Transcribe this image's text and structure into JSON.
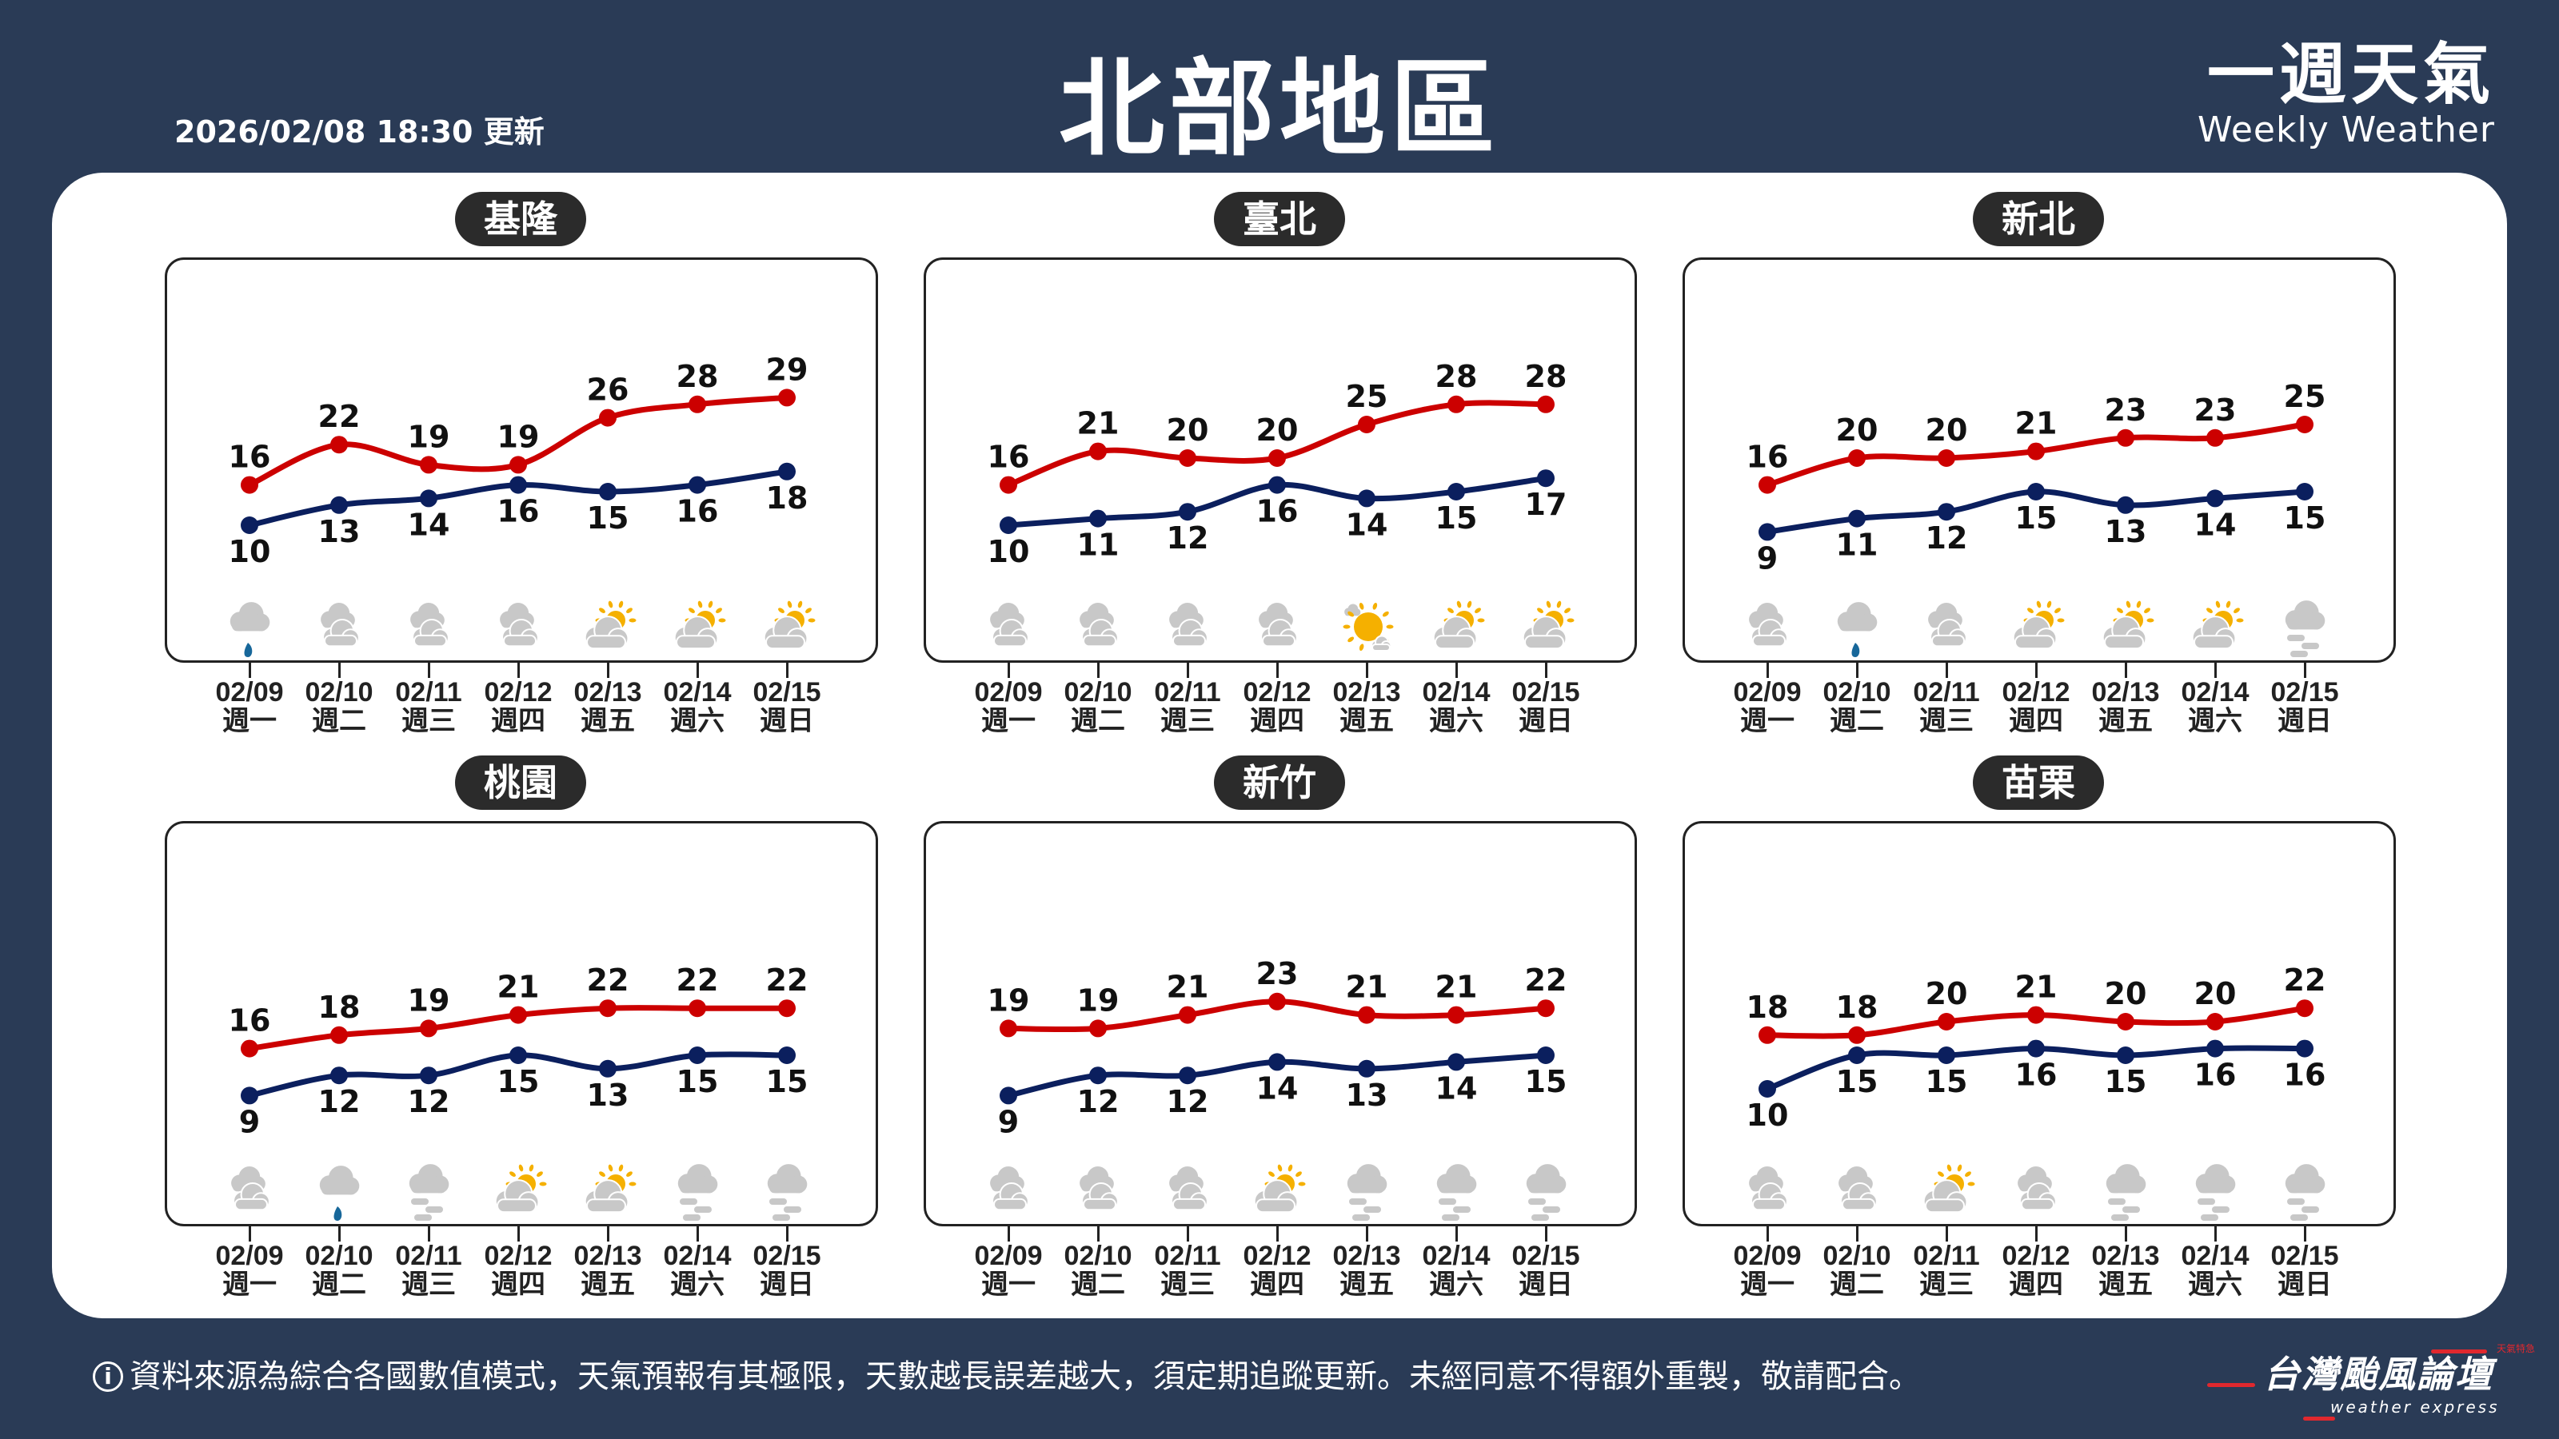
{
  "header": {
    "title": "北部地區",
    "updated": "2026/02/08 18:30 更新",
    "brand_zh": "一週天氣",
    "brand_en": "Weekly Weather"
  },
  "dates": [
    "02/09",
    "02/10",
    "02/11",
    "02/12",
    "02/13",
    "02/14",
    "02/15"
  ],
  "weekdays": [
    "週一",
    "週二",
    "週三",
    "週四",
    "週五",
    "週六",
    "週日"
  ],
  "colors": {
    "high": "#cc0000",
    "low": "#0b1f5e",
    "cloud": "#c8c8c8",
    "sun": "#f5b000",
    "rain": "#17679a",
    "background": "#2a3b56"
  },
  "regions": [
    {
      "name": "基隆",
      "highs": [
        16,
        22,
        19,
        19,
        26,
        28,
        29
      ],
      "lows": [
        10,
        13,
        14,
        16,
        15,
        16,
        18
      ],
      "icons": [
        "rain-icon",
        "cloudy-icon",
        "cloudy-icon",
        "cloudy-icon",
        "partly-cloudy-icon",
        "partly-cloudy-icon",
        "partly-cloudy-icon"
      ]
    },
    {
      "name": "臺北",
      "highs": [
        16,
        21,
        20,
        20,
        25,
        28,
        28
      ],
      "lows": [
        10,
        11,
        12,
        16,
        14,
        15,
        17
      ],
      "icons": [
        "cloudy-icon",
        "cloudy-icon",
        "cloudy-icon",
        "cloudy-icon",
        "mostly-sunny-icon",
        "partly-cloudy-icon",
        "partly-cloudy-icon"
      ]
    },
    {
      "name": "新北",
      "highs": [
        16,
        20,
        20,
        21,
        23,
        23,
        25
      ],
      "lows": [
        9,
        11,
        12,
        15,
        13,
        14,
        15
      ],
      "icons": [
        "cloudy-icon",
        "rain-icon",
        "cloudy-icon",
        "partly-cloudy-icon",
        "partly-cloudy-icon",
        "partly-cloudy-icon",
        "fog-icon"
      ]
    },
    {
      "name": "桃園",
      "highs": [
        16,
        18,
        19,
        21,
        22,
        22,
        22
      ],
      "lows": [
        9,
        12,
        12,
        15,
        13,
        15,
        15
      ],
      "icons": [
        "cloudy-icon",
        "rain-icon",
        "fog-icon",
        "partly-cloudy-icon",
        "partly-cloudy-icon",
        "fog-icon",
        "fog-icon"
      ]
    },
    {
      "name": "新竹",
      "highs": [
        19,
        19,
        21,
        23,
        21,
        21,
        22
      ],
      "lows": [
        9,
        12,
        12,
        14,
        13,
        14,
        15
      ],
      "icons": [
        "cloudy-icon",
        "cloudy-icon",
        "cloudy-icon",
        "partly-cloudy-icon",
        "fog-icon",
        "fog-icon",
        "fog-icon"
      ]
    },
    {
      "name": "苗栗",
      "highs": [
        18,
        18,
        20,
        21,
        20,
        20,
        22
      ],
      "lows": [
        10,
        15,
        15,
        16,
        15,
        16,
        16
      ],
      "icons": [
        "cloudy-icon",
        "cloudy-icon",
        "partly-cloudy-icon",
        "cloudy-icon",
        "fog-icon",
        "fog-icon",
        "fog-icon"
      ]
    }
  ],
  "footer": {
    "disclaimer": "資料來源為綜合各國數值模式，天氣預報有其極限，天數越長誤差越大，須定期追蹤更新。未經同意不得額外重製，敬請配合。",
    "info_icon": "i",
    "logo_zh": "台灣颱風論壇",
    "logo_en": "weather express",
    "logo_tag": "天氣特急"
  }
}
